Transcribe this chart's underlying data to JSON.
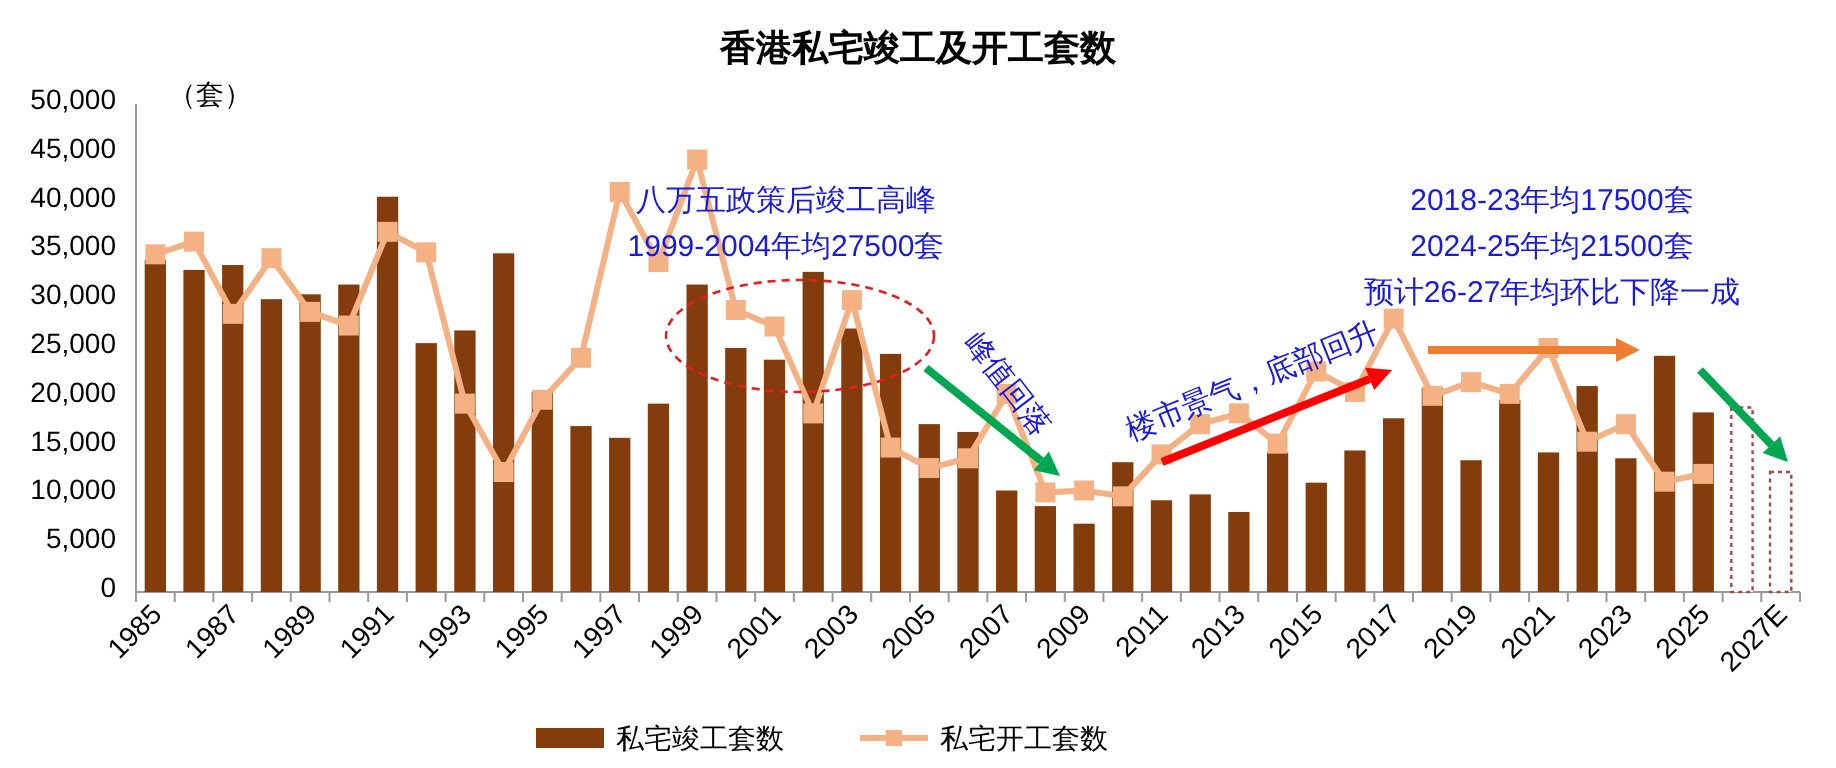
{
  "chart_data": {
    "type": "bar",
    "title": "香港私宅竣工及开工套数",
    "ylabel": "（套）",
    "categories": [
      "1985",
      null,
      "1987",
      null,
      "1989",
      null,
      "1991",
      null,
      "1993",
      null,
      "1995",
      null,
      "1997",
      null,
      "1999",
      null,
      "2001",
      null,
      "2003",
      null,
      "2005",
      null,
      "2007",
      null,
      "2009",
      null,
      "2011",
      null,
      "2013",
      null,
      "2015",
      null,
      "2017",
      null,
      "2019",
      null,
      "2021",
      null,
      "2023",
      null,
      "2025",
      null,
      "2027E"
    ],
    "series": [
      {
        "name": "私宅竣工套数",
        "type": "bar",
        "color": "#843c0c",
        "colors": [
          "#843c0c",
          "#843c0c",
          "#843c0c",
          "#843c0c",
          "#843c0c",
          "#843c0c",
          "#843c0c",
          "#843c0c",
          "#843c0c",
          "#843c0c",
          "#843c0c",
          "#843c0c",
          "#843c0c",
          "#843c0c",
          "#843c0c",
          "#843c0c",
          "#843c0c",
          "#843c0c",
          "#843c0c",
          "#843c0c",
          "#843c0c",
          "#843c0c",
          "#843c0c",
          "#843c0c",
          "#843c0c",
          "#843c0c",
          "#843c0c",
          "#843c0c",
          "#843c0c",
          "#843c0c",
          "#843c0c",
          "#843c0c",
          "#843c0c",
          "#843c0c",
          "#843c0c",
          "#843c0c",
          "#843c0c",
          "#843c0c",
          "#843c0c",
          "#843c0c",
          "#843c0c",
          "#9e4a4a",
          "#9e4a4a"
        ],
        "values": [
          34000,
          33000,
          33500,
          30000,
          30500,
          31500,
          40500,
          25500,
          26800,
          34700,
          20500,
          17000,
          15800,
          19300,
          31500,
          25000,
          23800,
          32800,
          27000,
          24400,
          17200,
          16400,
          10400,
          8800,
          7000,
          13300,
          9400,
          10000,
          8200,
          14300,
          11200,
          14500,
          17800,
          20900,
          13500,
          19700,
          14300,
          21100,
          13700,
          24200,
          18400,
          18900,
          12300
        ]
      },
      {
        "name": "私宅开工套数",
        "type": "line",
        "color": "#f4b183",
        "marker": "square",
        "line_style": "solid",
        "values": [
          34600,
          35900,
          28500,
          34200,
          28700,
          27300,
          36900,
          34800,
          19300,
          12300,
          19700,
          24000,
          41000,
          33800,
          44300,
          28900,
          27200,
          18300,
          29900,
          14800,
          12700,
          13700,
          20300,
          10200,
          10400,
          9800,
          14100,
          17200,
          18300,
          15200,
          22600,
          20500,
          28000,
          20100,
          21500,
          20300,
          25000,
          15400,
          17200,
          11300,
          12100,
          null,
          null
        ]
      }
    ],
    "ylim": [
      0,
      50000
    ],
    "yticks": [
      0,
      {
        "value": 5000,
        "label": "5,000"
      },
      {
        "value": 10000,
        "label": "10,000"
      },
      {
        "value": 15000,
        "label": "15,000"
      },
      {
        "value": 20000,
        "label": "20,000"
      },
      {
        "value": 25000,
        "label": "25,000"
      },
      {
        "value": 30000,
        "label": "30,000"
      },
      {
        "value": 35000,
        "label": "35,000"
      },
      {
        "value": 40000,
        "label": "40,000"
      },
      {
        "value": 45000,
        "label": "45,000"
      },
      {
        "value": 50000,
        "label": "50,000"
      }
    ],
    "legend": "bottom",
    "annotations": [
      "八万五政策后竣工高峰",
      "1999-2004年均27500套",
      "峰值回落",
      "楼市景气，底部回升",
      "2018-23年均17500套",
      "2024-25年均21500套",
      "预计26-27年均环比下降一成"
    ]
  }
}
